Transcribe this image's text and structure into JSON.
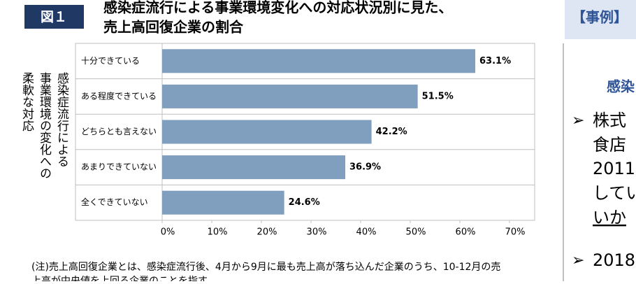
{
  "badge": "図１",
  "chart_data": {
    "type": "bar",
    "orientation": "horizontal",
    "title": [
      "感染症流行による事業環境変化への対応状況別に見た、",
      "売上高回復企業の割合"
    ],
    "ylabel": [
      "感染症流行による",
      "事業環境の変化への",
      "柔軟な対応"
    ],
    "categories": [
      "十分できている",
      "ある程度できている",
      "どちらとも言えない",
      "あまりできていない",
      "全くできていない"
    ],
    "values": [
      63.1,
      51.5,
      42.2,
      36.9,
      24.6
    ],
    "value_labels": [
      "63.1%",
      "51.5%",
      "42.2%",
      "36.9%",
      "24.6%"
    ],
    "color": "#809fbf",
    "xlim": [
      0,
      70
    ],
    "xticks": [
      {
        "value": 0,
        "label": "0%"
      },
      {
        "value": 10,
        "label": "10%"
      },
      {
        "value": 20,
        "label": "20%"
      },
      {
        "value": 30,
        "label": "30%"
      },
      {
        "value": 40,
        "label": "40%"
      },
      {
        "value": 50,
        "label": "50%"
      },
      {
        "value": 60,
        "label": "60%"
      },
      {
        "value": 70,
        "label": "70%"
      }
    ]
  },
  "note": [
    "(注)売上高回復企業とは、感染症流行後、4月から9月に最も売上高が落ち込んだ企業のうち、10-12月の売",
    "上高が中央値を上回る企業のことを指す。"
  ],
  "side_panel": {
    "header": "【事例】",
    "subtitle": "感染",
    "bullets": [
      {
        "marker": "➢",
        "lines": [
          "株式",
          "食店",
          "2011",
          "してい",
          "いか"
        ]
      },
      {
        "marker": "➢",
        "lines": [
          "2018"
        ]
      }
    ]
  }
}
